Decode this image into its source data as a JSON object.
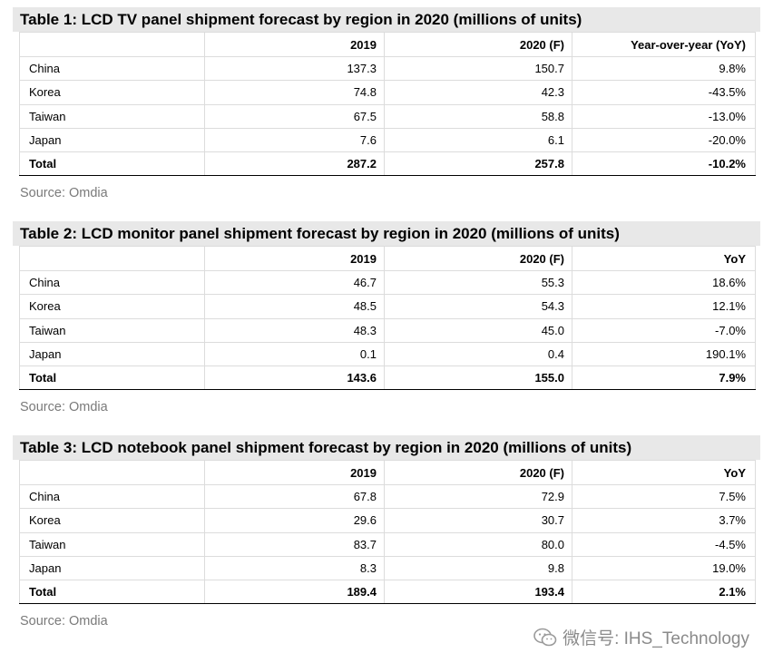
{
  "tables": [
    {
      "title": "Table 1: LCD TV panel shipment forecast by region in 2020 (millions of units)",
      "headers": [
        "",
        "2019",
        "2020 (F)",
        "Year-over-year (YoY)"
      ],
      "rows": [
        [
          "China",
          "137.3",
          "150.7",
          "9.8%"
        ],
        [
          "Korea",
          "74.8",
          "42.3",
          "-43.5%"
        ],
        [
          "Taiwan",
          "67.5",
          "58.8",
          "-13.0%"
        ],
        [
          "Japan",
          "7.6",
          "6.1",
          "-20.0%"
        ]
      ],
      "total": [
        "Total",
        "287.2",
        "257.8",
        "-10.2%"
      ],
      "source": "Source: Omdia"
    },
    {
      "title": "Table 2: LCD monitor panel shipment forecast by region in 2020 (millions of units)",
      "headers": [
        "",
        "2019",
        "2020 (F)",
        "YoY"
      ],
      "rows": [
        [
          "China",
          "46.7",
          "55.3",
          "18.6%"
        ],
        [
          "Korea",
          "48.5",
          "54.3",
          "12.1%"
        ],
        [
          "Taiwan",
          "48.3",
          "45.0",
          "-7.0%"
        ],
        [
          "Japan",
          "0.1",
          "0.4",
          "190.1%"
        ]
      ],
      "total": [
        "Total",
        "143.6",
        "155.0",
        "7.9%"
      ],
      "source": "Source: Omdia"
    },
    {
      "title": "Table 3: LCD notebook panel shipment forecast by region in 2020 (millions of units)",
      "headers": [
        "",
        "2019",
        "2020 (F)",
        "YoY"
      ],
      "rows": [
        [
          "China",
          "67.8",
          "72.9",
          "7.5%"
        ],
        [
          "Korea",
          "29.6",
          "30.7",
          "3.7%"
        ],
        [
          "Taiwan",
          "83.7",
          "80.0",
          "-4.5%"
        ],
        [
          "Japan",
          "8.3",
          "9.8",
          "19.0%"
        ]
      ],
      "total": [
        "Total",
        "189.4",
        "193.4",
        "2.1%"
      ],
      "source": "Source: Omdia"
    }
  ],
  "watermark": {
    "text": "微信号: IHS_Technology",
    "icon": "wechat-icon"
  }
}
